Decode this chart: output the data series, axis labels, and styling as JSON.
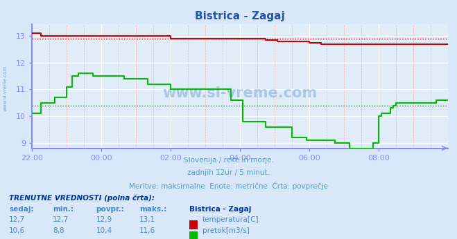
{
  "title": "Bistrica - Zagaj",
  "bg_color": "#d8e8f8",
  "plot_bg_color": "#e0ecf8",
  "xlabel_color": "#4488cc",
  "ylabel_color": "#4488cc",
  "title_color": "#2255aa",
  "subtitle_lines": [
    "Slovenija / reke in morje.",
    "zadnjih 12ur / 5 minut.",
    "Meritve: maksimalne  Enote: metrične  Črta: povprečje"
  ],
  "subtitle_color": "#5599cc",
  "watermark": "www.si-vreme.com",
  "watermark_color": "#6699cc",
  "axis_color": "#8888ff",
  "xlim": [
    0,
    144
  ],
  "ylim": [
    8.8,
    13.45
  ],
  "yticks": [
    9,
    10,
    11,
    12,
    13
  ],
  "xtick_labels": [
    "22:00",
    "00:00",
    "02:00",
    "04:00",
    "06:00",
    "08:00"
  ],
  "xtick_positions": [
    0,
    24,
    48,
    72,
    96,
    120
  ],
  "temp_avg": 12.9,
  "flow_avg": 10.4,
  "temp_color": "#cc0000",
  "flow_color": "#00bb00",
  "table_header": "TRENUTNE VREDNOSTI (polna črta):",
  "table_cols": [
    "sedaj:",
    "min.:",
    "povpr.:",
    "maks.:"
  ],
  "table_station": "Bistrica - Zagaj",
  "temp_row": [
    "12,7",
    "12,7",
    "12,9",
    "13,1"
  ],
  "flow_row": [
    "10,6",
    "8,8",
    "10,4",
    "11,6"
  ],
  "temp_label": "temperatura[C]",
  "flow_label": "pretok[m3/s]",
  "temp_series_x": [
    0,
    1,
    2,
    3,
    4,
    5,
    6,
    7,
    8,
    9,
    10,
    11,
    12,
    13,
    14,
    15,
    16,
    17,
    18,
    19,
    20,
    21,
    22,
    23,
    24,
    25,
    26,
    27,
    28,
    29,
    30,
    31,
    32,
    33,
    34,
    35,
    36,
    37,
    38,
    39,
    40,
    41,
    42,
    43,
    44,
    45,
    46,
    47,
    48,
    49,
    50,
    51,
    52,
    53,
    54,
    55,
    56,
    57,
    58,
    59,
    60,
    61,
    62,
    63,
    64,
    65,
    66,
    67,
    68,
    69,
    70,
    71,
    72,
    73,
    74,
    75,
    76,
    77,
    78,
    79,
    80,
    81,
    82,
    83,
    84,
    85,
    86,
    87,
    88,
    89,
    90,
    91,
    92,
    93,
    94,
    95,
    96,
    97,
    98,
    99,
    100,
    101,
    102,
    103,
    104,
    105,
    106,
    107,
    108,
    109,
    110,
    111,
    112,
    113,
    114,
    115,
    116,
    117,
    118,
    119,
    120,
    121,
    122,
    123,
    124,
    125,
    126,
    127,
    128,
    129,
    130,
    131,
    132,
    133,
    134,
    135,
    136,
    137,
    138,
    139,
    140,
    141,
    142,
    143,
    144
  ],
  "temp_series_y": [
    13.1,
    13.1,
    13.1,
    13.0,
    13.0,
    13.0,
    13.0,
    13.0,
    13.0,
    13.0,
    13.0,
    13.0,
    13.0,
    13.0,
    13.0,
    13.0,
    13.0,
    13.0,
    13.0,
    13.0,
    13.0,
    13.0,
    13.0,
    13.0,
    13.0,
    13.0,
    13.0,
    13.0,
    13.0,
    13.0,
    13.0,
    13.0,
    13.0,
    13.0,
    13.0,
    13.0,
    13.0,
    13.0,
    13.0,
    13.0,
    13.0,
    13.0,
    13.0,
    13.0,
    13.0,
    13.0,
    13.0,
    13.0,
    12.9,
    12.9,
    12.9,
    12.9,
    12.9,
    12.9,
    12.9,
    12.9,
    12.9,
    12.9,
    12.9,
    12.9,
    12.9,
    12.9,
    12.9,
    12.9,
    12.9,
    12.9,
    12.9,
    12.9,
    12.9,
    12.9,
    12.9,
    12.9,
    12.9,
    12.9,
    12.9,
    12.9,
    12.9,
    12.9,
    12.9,
    12.9,
    12.9,
    12.85,
    12.85,
    12.85,
    12.85,
    12.8,
    12.8,
    12.8,
    12.8,
    12.8,
    12.8,
    12.8,
    12.8,
    12.8,
    12.8,
    12.8,
    12.75,
    12.75,
    12.75,
    12.75,
    12.7,
    12.7,
    12.7,
    12.7,
    12.7,
    12.7,
    12.7,
    12.7,
    12.7,
    12.7,
    12.7,
    12.7,
    12.7,
    12.7,
    12.7,
    12.7,
    12.7,
    12.7,
    12.7,
    12.7,
    12.7,
    12.7,
    12.7,
    12.7,
    12.7,
    12.7,
    12.7,
    12.7,
    12.7,
    12.7,
    12.7,
    12.7,
    12.7,
    12.7,
    12.7,
    12.7,
    12.7,
    12.7,
    12.7,
    12.7,
    12.7,
    12.7,
    12.7,
    12.7,
    12.7
  ],
  "flow_series_x": [
    0,
    1,
    2,
    3,
    4,
    5,
    6,
    7,
    8,
    9,
    10,
    11,
    12,
    13,
    14,
    15,
    16,
    17,
    18,
    19,
    20,
    21,
    22,
    23,
    24,
    25,
    26,
    27,
    28,
    29,
    30,
    31,
    32,
    33,
    34,
    35,
    36,
    37,
    38,
    39,
    40,
    41,
    42,
    43,
    44,
    45,
    46,
    47,
    48,
    49,
    50,
    51,
    52,
    53,
    54,
    55,
    56,
    57,
    58,
    59,
    60,
    61,
    62,
    63,
    64,
    65,
    66,
    67,
    68,
    69,
    70,
    71,
    72,
    73,
    74,
    75,
    76,
    77,
    78,
    79,
    80,
    81,
    82,
    83,
    84,
    85,
    86,
    87,
    88,
    89,
    90,
    91,
    92,
    93,
    94,
    95,
    96,
    97,
    98,
    99,
    100,
    101,
    102,
    103,
    104,
    105,
    106,
    107,
    108,
    109,
    110,
    111,
    112,
    113,
    114,
    115,
    116,
    117,
    118,
    119,
    120,
    121,
    122,
    123,
    124,
    125,
    126,
    127,
    128,
    129,
    130,
    131,
    132,
    133,
    134,
    135,
    136,
    137,
    138,
    139,
    140,
    141,
    142,
    143,
    144
  ],
  "flow_series_y": [
    10.1,
    10.1,
    10.1,
    10.5,
    10.5,
    10.5,
    10.5,
    10.5,
    10.7,
    10.7,
    10.7,
    10.7,
    11.1,
    11.1,
    11.5,
    11.5,
    11.6,
    11.6,
    11.6,
    11.6,
    11.6,
    11.5,
    11.5,
    11.5,
    11.5,
    11.5,
    11.5,
    11.5,
    11.5,
    11.5,
    11.5,
    11.5,
    11.4,
    11.4,
    11.4,
    11.4,
    11.4,
    11.4,
    11.4,
    11.4,
    11.2,
    11.2,
    11.2,
    11.2,
    11.2,
    11.2,
    11.2,
    11.2,
    11.0,
    11.0,
    11.0,
    11.0,
    11.0,
    11.0,
    11.0,
    11.0,
    11.0,
    11.0,
    11.0,
    11.0,
    11.0,
    11.0,
    11.0,
    11.0,
    11.0,
    11.0,
    11.0,
    11.0,
    11.0,
    10.6,
    10.6,
    10.6,
    10.6,
    9.8,
    9.8,
    9.8,
    9.8,
    9.8,
    9.8,
    9.8,
    9.8,
    9.6,
    9.6,
    9.6,
    9.6,
    9.6,
    9.6,
    9.6,
    9.6,
    9.6,
    9.2,
    9.2,
    9.2,
    9.2,
    9.2,
    9.1,
    9.1,
    9.1,
    9.1,
    9.1,
    9.1,
    9.1,
    9.1,
    9.1,
    9.1,
    9.0,
    9.0,
    9.0,
    9.0,
    9.0,
    8.8,
    8.8,
    8.8,
    8.8,
    8.8,
    8.8,
    8.8,
    8.8,
    9.0,
    9.0,
    10.0,
    10.1,
    10.1,
    10.1,
    10.3,
    10.4,
    10.5,
    10.5,
    10.5,
    10.5,
    10.5,
    10.5,
    10.5,
    10.5,
    10.5,
    10.5,
    10.5,
    10.5,
    10.5,
    10.5,
    10.6,
    10.6,
    10.6,
    10.6,
    10.6
  ]
}
